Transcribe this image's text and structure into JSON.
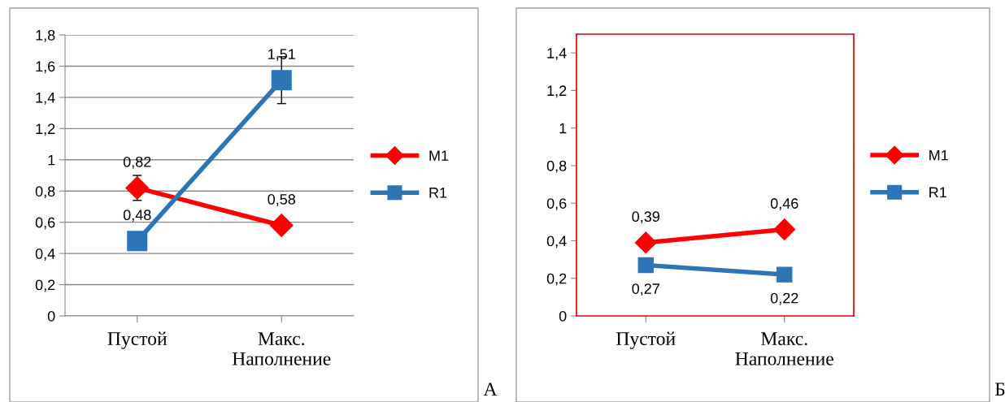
{
  "chart_data": [
    {
      "type": "line",
      "categories": [
        "Пустой",
        "Макс.\nНаполнение"
      ],
      "ylim": [
        0,
        1.8
      ],
      "yticks": [
        {
          "value": 0,
          "label": "0"
        },
        {
          "value": 0.2,
          "label": "0,2"
        },
        {
          "value": 0.4,
          "label": "0,4"
        },
        {
          "value": 0.6,
          "label": "0,6"
        },
        {
          "value": 0.8,
          "label": "0,8"
        },
        {
          "value": 1,
          "label": "1"
        },
        {
          "value": 1.2,
          "label": "1,2"
        },
        {
          "value": 1.4,
          "label": "1,4"
        },
        {
          "value": 1.6,
          "label": "1,6"
        },
        {
          "value": 1.8,
          "label": "1,8"
        }
      ],
      "grid": "y",
      "legend": "right",
      "data_labels": true,
      "annotations": [
        "А"
      ],
      "series": [
        {
          "name": "M1",
          "color": "#ff0000",
          "marker": "diamond",
          "values": [
            0.82,
            0.58
          ],
          "errors": [
            0.08,
            null
          ],
          "value_labels": [
            "0,82",
            "0,58"
          ]
        },
        {
          "name": "R1",
          "color": "#2e75b6",
          "marker": "square",
          "values": [
            0.48,
            1.51
          ],
          "errors": [
            null,
            0.15
          ],
          "value_labels": [
            "0,48",
            "1,51"
          ]
        }
      ]
    },
    {
      "type": "line",
      "categories": [
        "Пустой",
        "Макс.\nНаполнение"
      ],
      "ylim": [
        0,
        1.5
      ],
      "yticks": [
        {
          "value": 0,
          "label": "0"
        },
        {
          "value": 0.2,
          "label": "0,2"
        },
        {
          "value": 0.4,
          "label": "0,4"
        },
        {
          "value": 0.6,
          "label": "0,6"
        },
        {
          "value": 0.8,
          "label": "0,8"
        },
        {
          "value": 1,
          "label": "1"
        },
        {
          "value": 1.2,
          "label": "1,2"
        },
        {
          "value": 1.4,
          "label": "1,4"
        }
      ],
      "grid": false,
      "legend": "right",
      "data_labels": true,
      "annotations": [
        "Б"
      ],
      "series": [
        {
          "name": "M1",
          "color": "#ff0000",
          "marker": "diamond",
          "values": [
            0.39,
            0.46
          ],
          "value_labels": [
            "0,39",
            "0,46"
          ]
        },
        {
          "name": "R1",
          "color": "#2e75b6",
          "marker": "square",
          "values": [
            0.27,
            0.22
          ],
          "value_labels": [
            "0,27",
            "0,22"
          ]
        }
      ]
    }
  ]
}
